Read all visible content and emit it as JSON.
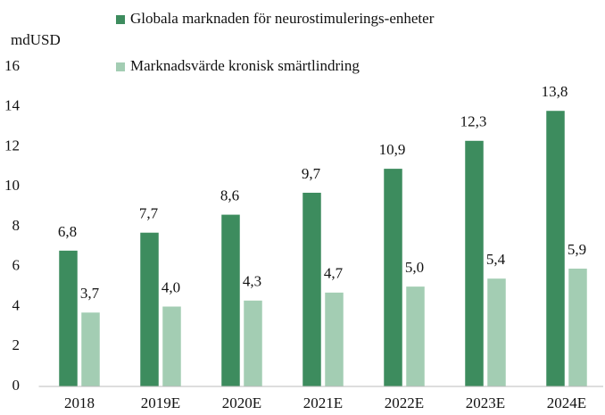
{
  "chart_data": {
    "type": "bar",
    "y_axis_label": "mdUSD",
    "categories": [
      "2018",
      "2019E",
      "2020E",
      "2021E",
      "2022E",
      "2023E",
      "2024E"
    ],
    "series": [
      {
        "name": "Globala marknaden för neurostimulerings-enheter",
        "color": "#3d8c5e",
        "values": [
          6.8,
          7.7,
          8.6,
          9.7,
          10.9,
          12.3,
          13.8
        ],
        "value_labels": [
          "6,8",
          "7,7",
          "8,6",
          "9,7",
          "10,9",
          "12,3",
          "13,8"
        ]
      },
      {
        "name": "Marknadsvärde kronisk smärtlindring",
        "color": "#a3cdb3",
        "values": [
          3.7,
          4.0,
          4.3,
          4.7,
          5.0,
          5.4,
          5.9
        ],
        "value_labels": [
          "3,7",
          "4,0",
          "4,3",
          "4,7",
          "5,0",
          "5,4",
          "5,9"
        ]
      }
    ],
    "ylim": [
      0,
      16
    ],
    "yticks": [
      0,
      2,
      4,
      6,
      8,
      10,
      12,
      14,
      16
    ],
    "grid": false
  }
}
